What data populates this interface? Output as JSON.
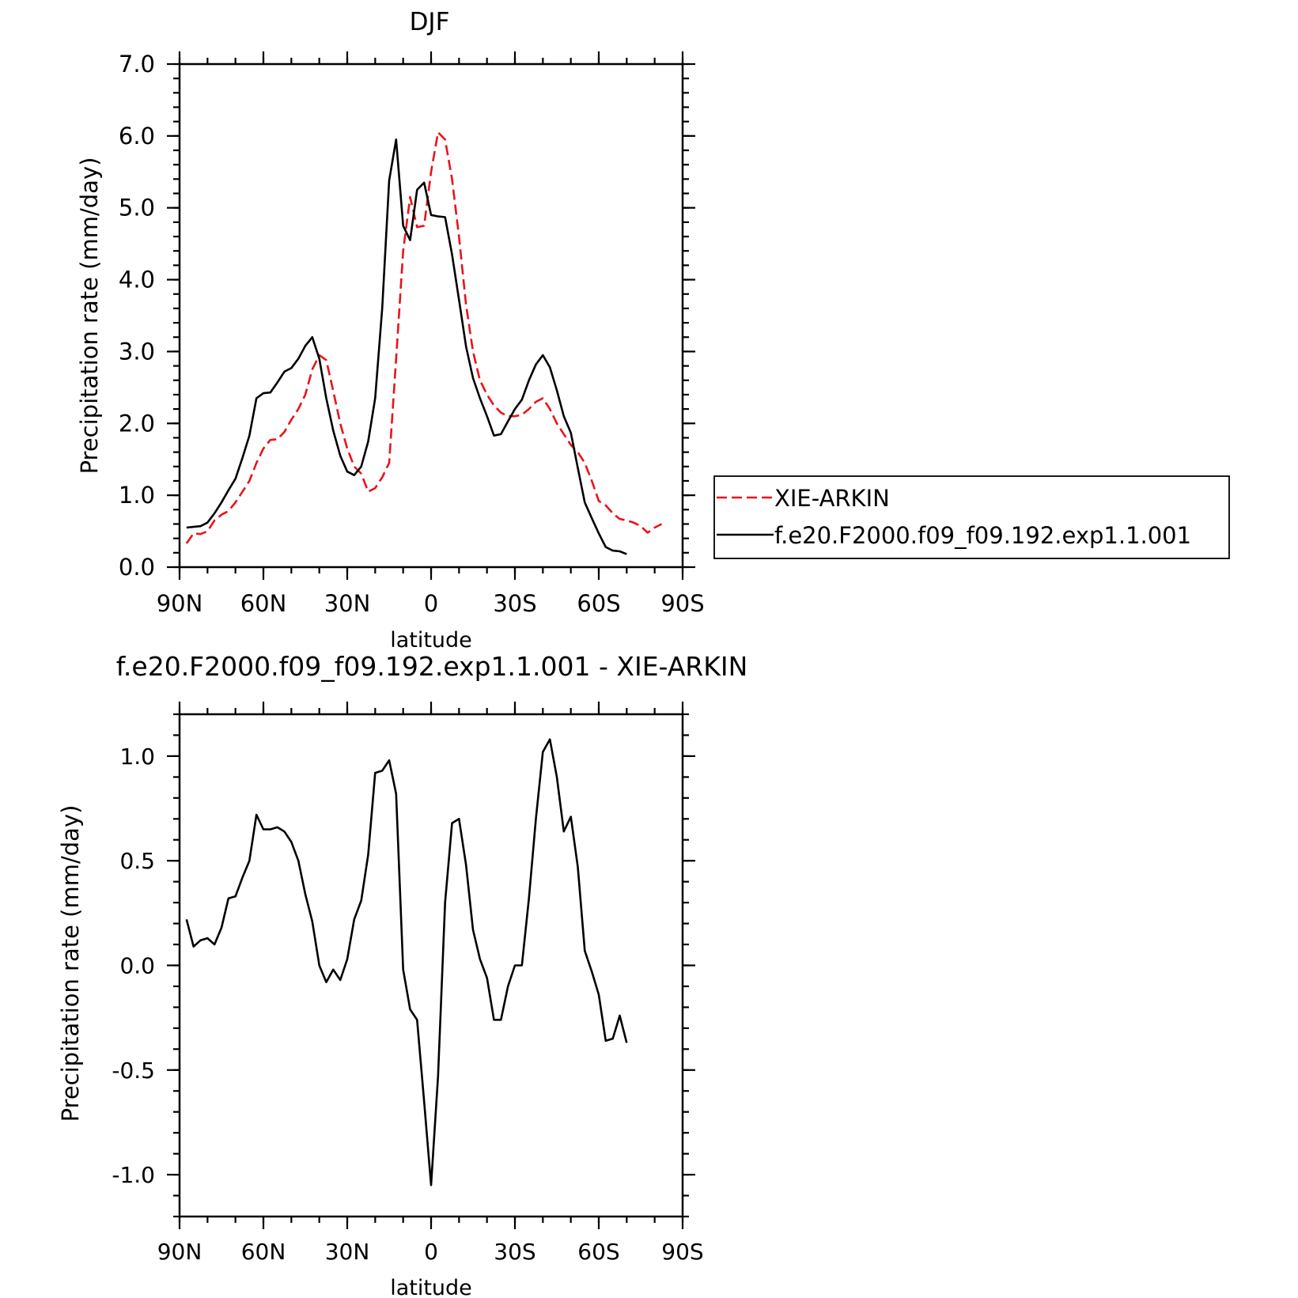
{
  "chart_data": [
    {
      "type": "line",
      "title": "DJF",
      "xlabel": "latitude",
      "ylabel": "Precipitation rate (mm/day)",
      "xlim": [
        90,
        -90
      ],
      "ylim": [
        0,
        7
      ],
      "xticks": [
        90,
        60,
        30,
        0,
        -30,
        -60,
        -90
      ],
      "xtick_labels": [
        "90N",
        "60N",
        "30N",
        "0",
        "30S",
        "60S",
        "90S"
      ],
      "yticks": [
        0,
        1,
        2,
        3,
        4,
        5,
        6,
        7
      ],
      "ytick_labels": [
        "0.0",
        "1.0",
        "2.0",
        "3.0",
        "4.0",
        "5.0",
        "6.0",
        "7.0"
      ],
      "legend": "right",
      "series": [
        {
          "name": "XIE-ARKIN",
          "color": "#e8141b",
          "dash": "dashed",
          "points": [
            [
              87.5,
              0.33
            ],
            [
              85,
              0.47
            ],
            [
              82.5,
              0.46
            ],
            [
              80,
              0.5
            ],
            [
              77.5,
              0.65
            ],
            [
              75,
              0.73
            ],
            [
              72.5,
              0.78
            ],
            [
              70,
              0.9
            ],
            [
              67.5,
              1.05
            ],
            [
              65,
              1.2
            ],
            [
              62.5,
              1.45
            ],
            [
              60,
              1.65
            ],
            [
              57.5,
              1.77
            ],
            [
              55,
              1.78
            ],
            [
              52.5,
              1.88
            ],
            [
              50,
              2.05
            ],
            [
              47.5,
              2.2
            ],
            [
              45,
              2.4
            ],
            [
              42.5,
              2.75
            ],
            [
              40,
              2.95
            ],
            [
              37.5,
              2.88
            ],
            [
              35,
              2.45
            ],
            [
              32.5,
              2.0
            ],
            [
              30,
              1.65
            ],
            [
              27.5,
              1.4
            ],
            [
              25,
              1.3
            ],
            [
              22.5,
              1.05
            ],
            [
              20,
              1.1
            ],
            [
              17.5,
              1.25
            ],
            [
              15,
              1.45
            ],
            [
              12.5,
              2.9
            ],
            [
              10,
              4.4
            ],
            [
              7.5,
              5.15
            ],
            [
              5,
              4.73
            ],
            [
              2.5,
              4.75
            ],
            [
              0,
              5.5
            ],
            [
              -2.5,
              6.05
            ],
            [
              -5,
              5.95
            ],
            [
              -7.5,
              5.4
            ],
            [
              -10,
              4.6
            ],
            [
              -12.5,
              3.65
            ],
            [
              -15,
              3.0
            ],
            [
              -17.5,
              2.6
            ],
            [
              -20,
              2.4
            ],
            [
              -22.5,
              2.25
            ],
            [
              -25,
              2.15
            ],
            [
              -27.5,
              2.1
            ],
            [
              -30,
              2.1
            ],
            [
              -32.5,
              2.12
            ],
            [
              -35,
              2.2
            ],
            [
              -37.5,
              2.3
            ],
            [
              -40,
              2.35
            ],
            [
              -42.5,
              2.2
            ],
            [
              -45,
              2.0
            ],
            [
              -47.5,
              1.85
            ],
            [
              -50,
              1.7
            ],
            [
              -52.5,
              1.6
            ],
            [
              -55,
              1.45
            ],
            [
              -57.5,
              1.2
            ],
            [
              -60,
              0.92
            ],
            [
              -62.5,
              0.86
            ],
            [
              -65,
              0.75
            ],
            [
              -67.5,
              0.67
            ],
            [
              -70,
              0.65
            ],
            [
              -72.5,
              0.62
            ],
            [
              -75,
              0.57
            ],
            [
              -77.5,
              0.48
            ],
            [
              -80,
              0.55
            ],
            [
              -82.5,
              0.6
            ]
          ]
        },
        {
          "name": "f.e20.F2000.f09_f09.192.exp1.1.001",
          "color": "#000000",
          "dash": "solid",
          "points": [
            [
              87.5,
              0.55
            ],
            [
              85,
              0.56
            ],
            [
              82.5,
              0.57
            ],
            [
              80,
              0.62
            ],
            [
              77.5,
              0.75
            ],
            [
              75,
              0.9
            ],
            [
              72.5,
              1.07
            ],
            [
              70,
              1.23
            ],
            [
              67.5,
              1.52
            ],
            [
              65,
              1.83
            ],
            [
              62.5,
              2.35
            ],
            [
              60,
              2.42
            ],
            [
              57.5,
              2.43
            ],
            [
              55,
              2.57
            ],
            [
              52.5,
              2.72
            ],
            [
              50,
              2.77
            ],
            [
              47.5,
              2.9
            ],
            [
              45,
              3.08
            ],
            [
              42.5,
              3.2
            ],
            [
              40,
              2.9
            ],
            [
              37.5,
              2.35
            ],
            [
              35,
              1.9
            ],
            [
              32.5,
              1.55
            ],
            [
              30,
              1.33
            ],
            [
              27.5,
              1.28
            ],
            [
              25,
              1.4
            ],
            [
              22.5,
              1.75
            ],
            [
              20,
              2.35
            ],
            [
              17.5,
              3.6
            ],
            [
              15,
              5.38
            ],
            [
              12.5,
              5.95
            ],
            [
              10,
              4.75
            ],
            [
              7.5,
              4.55
            ],
            [
              5,
              5.25
            ],
            [
              2.5,
              5.35
            ],
            [
              0,
              4.9
            ],
            [
              -2.5,
              4.88
            ],
            [
              -5,
              4.87
            ],
            [
              -7.5,
              4.35
            ],
            [
              -10,
              3.72
            ],
            [
              -12.5,
              3.07
            ],
            [
              -15,
              2.63
            ],
            [
              -17.5,
              2.35
            ],
            [
              -20,
              2.1
            ],
            [
              -22.5,
              1.83
            ],
            [
              -25,
              1.85
            ],
            [
              -27.5,
              2.03
            ],
            [
              -30,
              2.2
            ],
            [
              -32.5,
              2.33
            ],
            [
              -35,
              2.6
            ],
            [
              -37.5,
              2.82
            ],
            [
              -40,
              2.95
            ],
            [
              -42.5,
              2.78
            ],
            [
              -45,
              2.46
            ],
            [
              -47.5,
              2.1
            ],
            [
              -50,
              1.87
            ],
            [
              -52.5,
              1.38
            ],
            [
              -55,
              0.9
            ],
            [
              -57.5,
              0.68
            ],
            [
              -60,
              0.47
            ],
            [
              -62.5,
              0.28
            ],
            [
              -65,
              0.23
            ],
            [
              -67.5,
              0.22
            ],
            [
              -70,
              0.18
            ]
          ]
        }
      ]
    },
    {
      "type": "line",
      "title": "f.e20.F2000.f09_f09.192.exp1.1.001 - XIE-ARKIN",
      "xlabel": "latitude",
      "ylabel": "Precipitation rate (mm/day)",
      "xlim": [
        90,
        -90
      ],
      "ylim": [
        -1.2,
        1.2
      ],
      "xticks": [
        90,
        60,
        30,
        0,
        -30,
        -60,
        -90
      ],
      "xtick_labels": [
        "90N",
        "60N",
        "30N",
        "0",
        "30S",
        "60S",
        "90S"
      ],
      "yticks": [
        -1.0,
        -0.5,
        0.0,
        0.5,
        1.0
      ],
      "ytick_labels": [
        "-1.0",
        "-0.5",
        "0.0",
        "0.5",
        "1.0"
      ],
      "series": [
        {
          "color": "#000000",
          "dash": "solid",
          "points": [
            [
              87.5,
              0.22
            ],
            [
              85,
              0.09
            ],
            [
              82.5,
              0.12
            ],
            [
              80,
              0.13
            ],
            [
              77.5,
              0.1
            ],
            [
              75,
              0.18
            ],
            [
              72.5,
              0.32
            ],
            [
              70,
              0.33
            ],
            [
              67.5,
              0.42
            ],
            [
              65,
              0.5
            ],
            [
              62.5,
              0.72
            ],
            [
              60,
              0.65
            ],
            [
              57.5,
              0.65
            ],
            [
              55,
              0.66
            ],
            [
              52.5,
              0.64
            ],
            [
              50,
              0.59
            ],
            [
              47.5,
              0.5
            ],
            [
              45,
              0.34
            ],
            [
              42.5,
              0.21
            ],
            [
              40,
              0.0
            ],
            [
              37.5,
              -0.08
            ],
            [
              35,
              -0.02
            ],
            [
              32.5,
              -0.07
            ],
            [
              30,
              0.03
            ],
            [
              27.5,
              0.22
            ],
            [
              25,
              0.31
            ],
            [
              22.5,
              0.53
            ],
            [
              20,
              0.92
            ],
            [
              17.5,
              0.93
            ],
            [
              15,
              0.98
            ],
            [
              12.5,
              0.82
            ],
            [
              10,
              -0.02
            ],
            [
              7.5,
              -0.21
            ],
            [
              5,
              -0.26
            ],
            [
              2.5,
              -0.65
            ],
            [
              0,
              -1.05
            ],
            [
              -2.5,
              -0.53
            ],
            [
              -5,
              0.3
            ],
            [
              -7.5,
              0.68
            ],
            [
              -10,
              0.7
            ],
            [
              -12.5,
              0.48
            ],
            [
              -15,
              0.17
            ],
            [
              -17.5,
              0.03
            ],
            [
              -20,
              -0.06
            ],
            [
              -22.5,
              -0.26
            ],
            [
              -25,
              -0.26
            ],
            [
              -27.5,
              -0.1
            ],
            [
              -30,
              0.0
            ],
            [
              -32.5,
              0.0
            ],
            [
              -35,
              0.32
            ],
            [
              -37.5,
              0.7
            ],
            [
              -40,
              1.02
            ],
            [
              -42.5,
              1.08
            ],
            [
              -45,
              0.9
            ],
            [
              -47.5,
              0.64
            ],
            [
              -50,
              0.71
            ],
            [
              -52.5,
              0.47
            ],
            [
              -55,
              0.07
            ],
            [
              -57.5,
              -0.03
            ],
            [
              -60,
              -0.14
            ],
            [
              -62.5,
              -0.36
            ],
            [
              -65,
              -0.35
            ],
            [
              -67.5,
              -0.24
            ],
            [
              -70,
              -0.37
            ]
          ]
        }
      ]
    }
  ]
}
